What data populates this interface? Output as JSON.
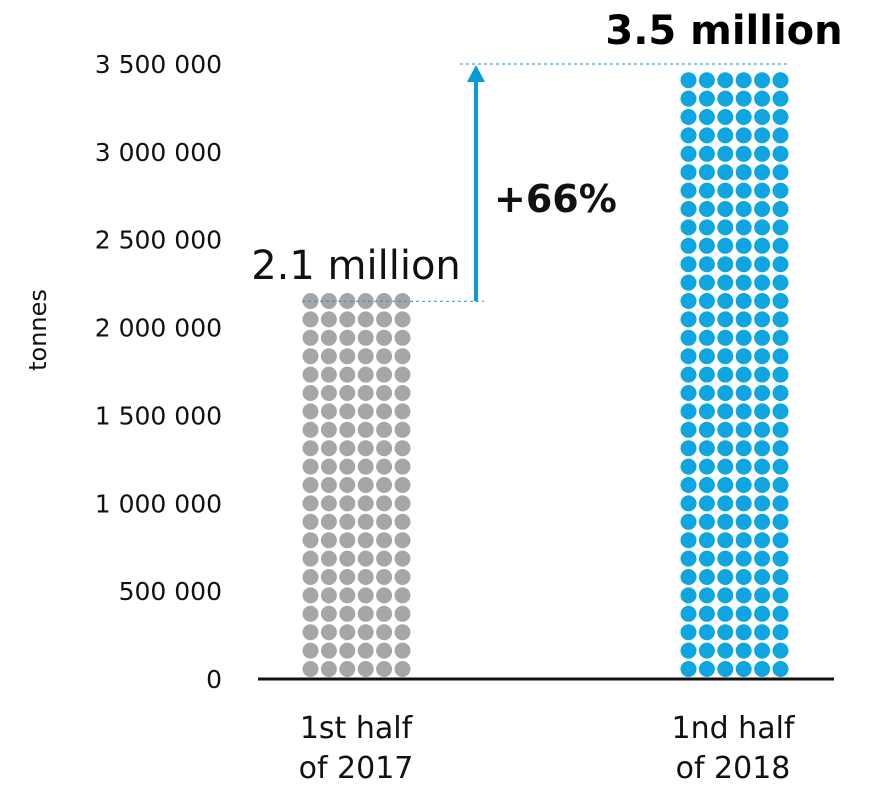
{
  "chart_data": {
    "type": "bar",
    "ylabel": "tonnes",
    "ylim": [
      0,
      3500000
    ],
    "y_ticks": [
      {
        "value": 0,
        "label": "0"
      },
      {
        "value": 500000,
        "label": "500 000"
      },
      {
        "value": 1000000,
        "label": "1 000 000"
      },
      {
        "value": 1500000,
        "label": "1 500 000"
      },
      {
        "value": 2000000,
        "label": "2 000 000"
      },
      {
        "value": 2500000,
        "label": "2 500 000"
      },
      {
        "value": 3000000,
        "label": "3 000 000"
      },
      {
        "value": 3500000,
        "label": "3 500 000"
      }
    ],
    "categories": [
      {
        "line1": "1st half",
        "line2": "of 2017"
      },
      {
        "line1": "1nd half",
        "line2": "of 2018"
      }
    ],
    "values": [
      2150000,
      3500000
    ],
    "data_labels": [
      "2.1 million",
      "3.5 million"
    ],
    "change_label": "+66%",
    "colors": {
      "bar_2017": "#a6a6a6",
      "bar_2018": "#0ea5e0",
      "arrow": "#0a9ad6",
      "axis": "#111111"
    },
    "grid": false
  }
}
